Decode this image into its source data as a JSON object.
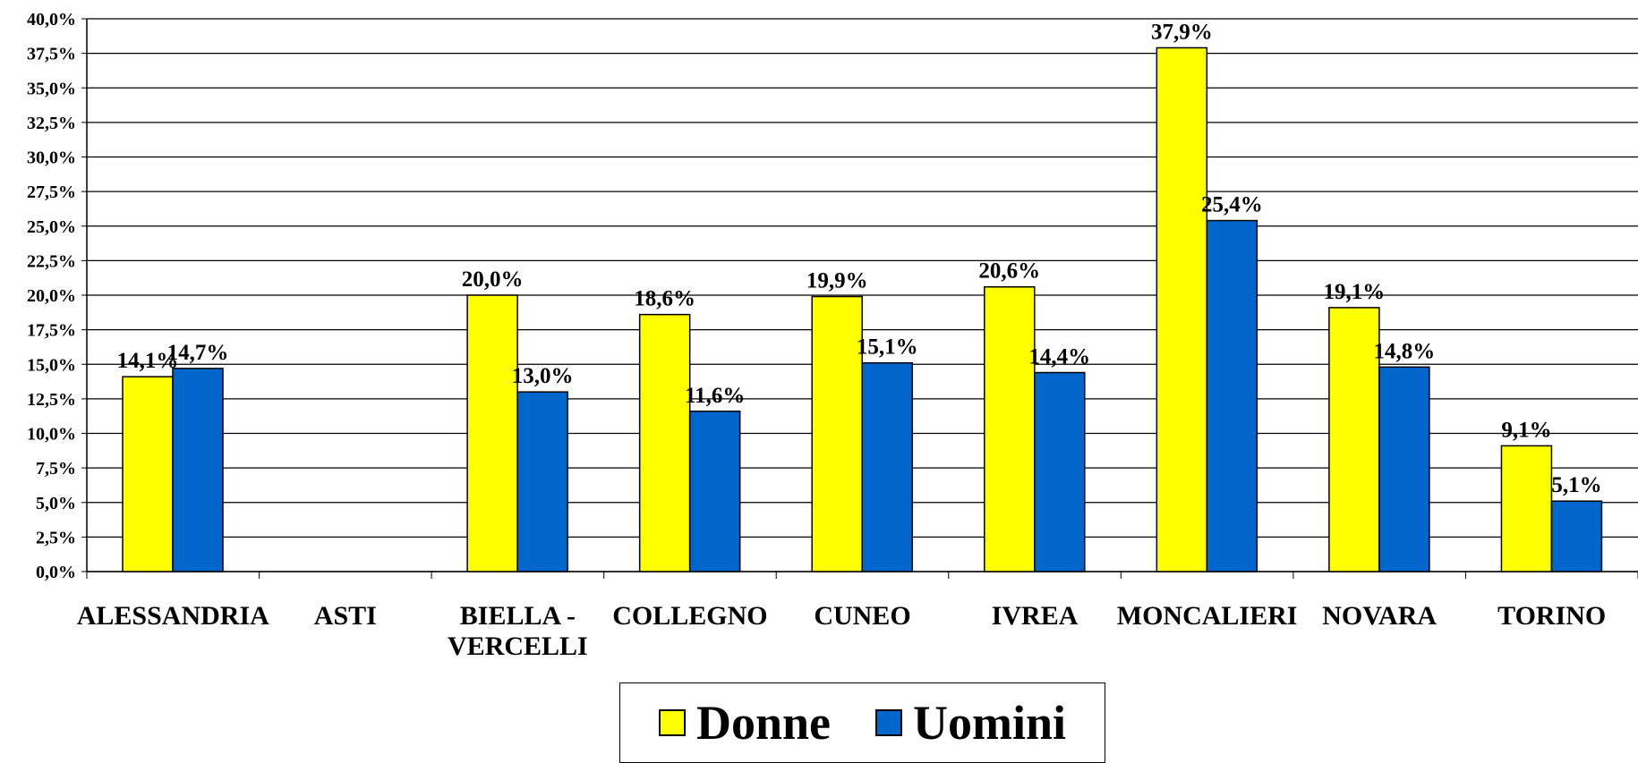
{
  "chart_data": {
    "type": "bar",
    "categories": [
      "ALESSANDRIA",
      "ASTI",
      "BIELLA - VERCELLI",
      "COLLEGNO",
      "CUNEO",
      "IVREA",
      "MONCALIERI",
      "NOVARA",
      "TORINO"
    ],
    "series": [
      {
        "name": "Donne",
        "color": "#ffff00",
        "values": [
          14.1,
          null,
          20.0,
          18.6,
          19.9,
          20.6,
          37.9,
          19.1,
          9.1
        ],
        "value_labels": [
          "14,1%",
          null,
          "20,0%",
          "18,6%",
          "19,9%",
          "20,6%",
          "37,9%",
          "19,1%",
          "9,1%"
        ]
      },
      {
        "name": "Uomini",
        "color": "#0066cc",
        "values": [
          14.7,
          null,
          13.0,
          11.6,
          15.1,
          14.4,
          25.4,
          14.8,
          5.1
        ],
        "value_labels": [
          "14,7%",
          null,
          "13,0%",
          "11,6%",
          "15,1%",
          "14,4%",
          "25,4%",
          "14,8%",
          "5,1%"
        ]
      }
    ],
    "ylim": [
      0,
      40
    ],
    "yticks": [
      {
        "value": 0,
        "label": "0,0%"
      },
      {
        "value": 2.5,
        "label": "2,5%"
      },
      {
        "value": 5,
        "label": "5,0%"
      },
      {
        "value": 7.5,
        "label": "7,5%"
      },
      {
        "value": 10,
        "label": "10,0%"
      },
      {
        "value": 12.5,
        "label": "12,5%"
      },
      {
        "value": 15,
        "label": "15,0%"
      },
      {
        "value": 17.5,
        "label": "17,5%"
      },
      {
        "value": 20,
        "label": "20,0%"
      },
      {
        "value": 22.5,
        "label": "22,5%"
      },
      {
        "value": 25,
        "label": "25,0%"
      },
      {
        "value": 27.5,
        "label": "27,5%"
      },
      {
        "value": 30,
        "label": "30,0%"
      },
      {
        "value": 32.5,
        "label": "32,5%"
      },
      {
        "value": 35,
        "label": "35,0%"
      },
      {
        "value": 37.5,
        "label": "37,5%"
      },
      {
        "value": 40,
        "label": "40,0%"
      }
    ],
    "grid": true,
    "legend": "bottom"
  }
}
